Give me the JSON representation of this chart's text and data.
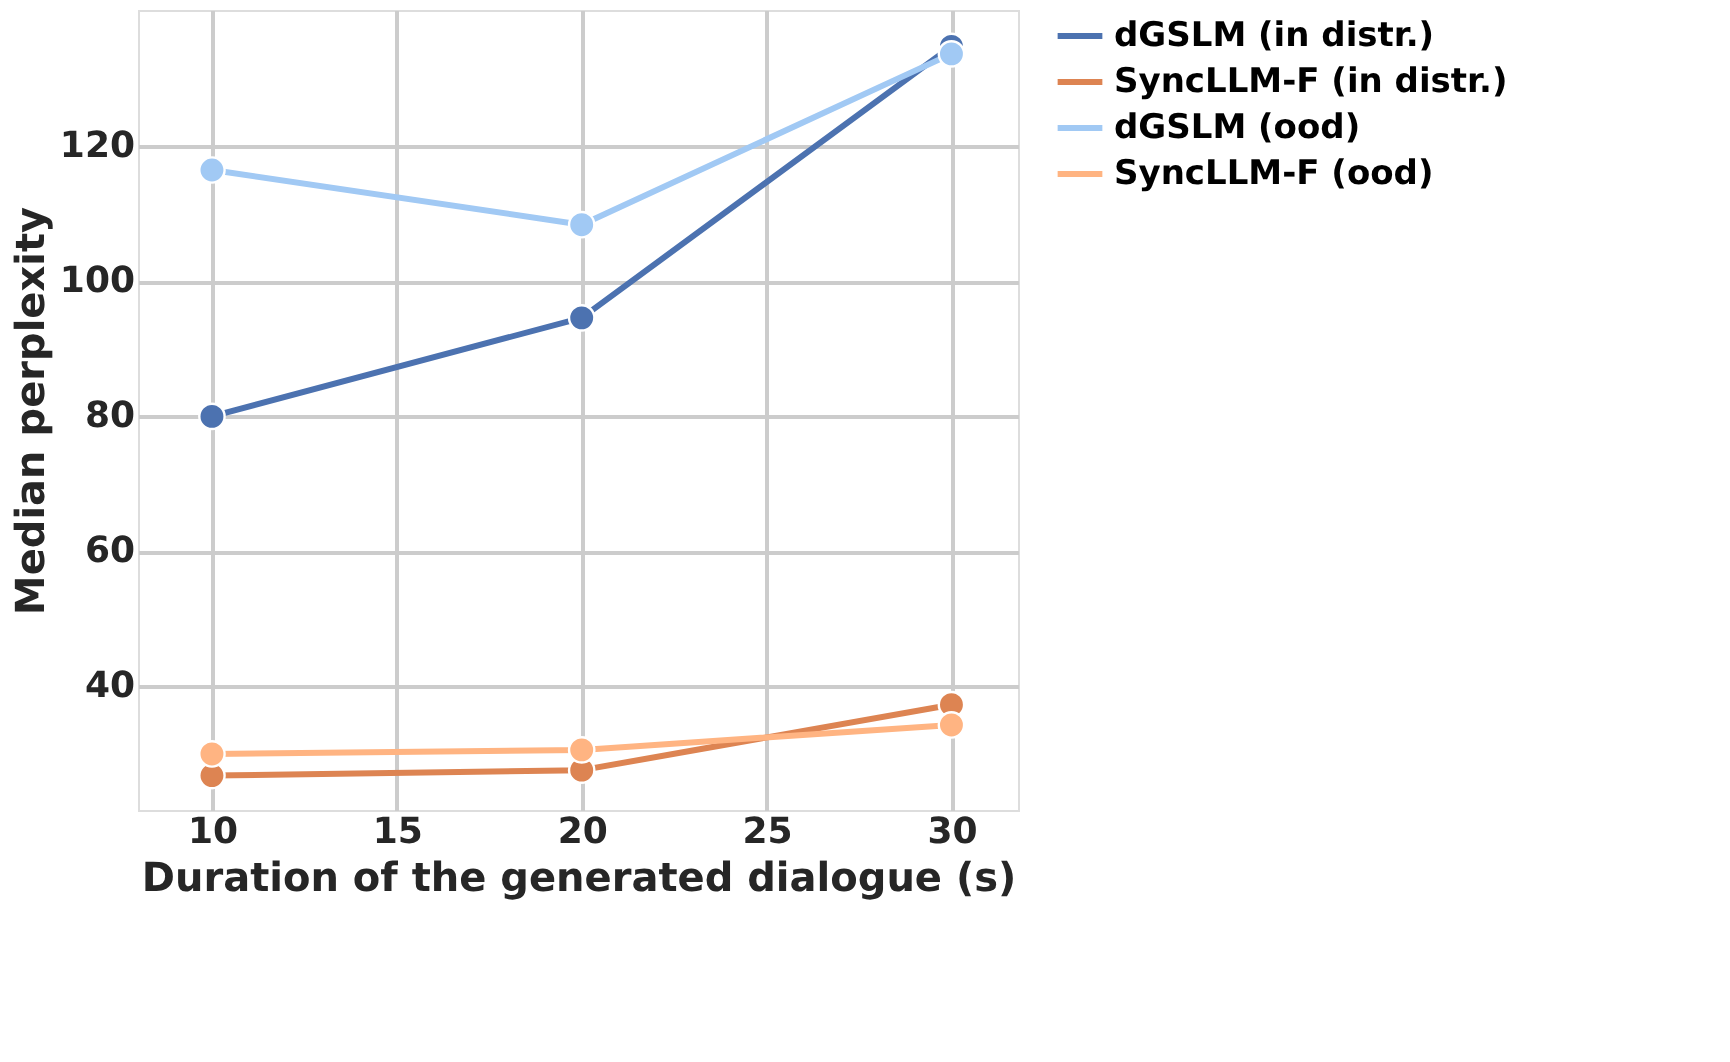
{
  "chart_data": {
    "type": "line",
    "xlabel": "Duration of the generated dialogue (s)",
    "ylabel": "Median perplexity",
    "x": [
      10,
      20,
      30
    ],
    "series": [
      {
        "name": "dGSLM (in distr.)",
        "color": "#4c72b0",
        "values": [
          80,
          94.6,
          134.8
        ]
      },
      {
        "name": "SyncLLM-F (in distr.)",
        "color": "#dd8452",
        "values": [
          26.8,
          27.6,
          37.3
        ]
      },
      {
        "name": "dGSLM (ood)",
        "color": "#a1c9f4",
        "values": [
          116.5,
          108.4,
          133.7
        ]
      },
      {
        "name": "SyncLLM-F (ood)",
        "color": "#ffb482",
        "values": [
          30.0,
          30.6,
          34.3
        ]
      }
    ],
    "xlim": [
      8,
      31.8
    ],
    "xticks": [
      10,
      15,
      20,
      25,
      30
    ],
    "ylim": [
      21.7,
      140.2
    ],
    "yticks": [
      40,
      60,
      80,
      100,
      120
    ],
    "grid": true,
    "legend": "right",
    "marker": "circle",
    "line_style": "solid"
  }
}
